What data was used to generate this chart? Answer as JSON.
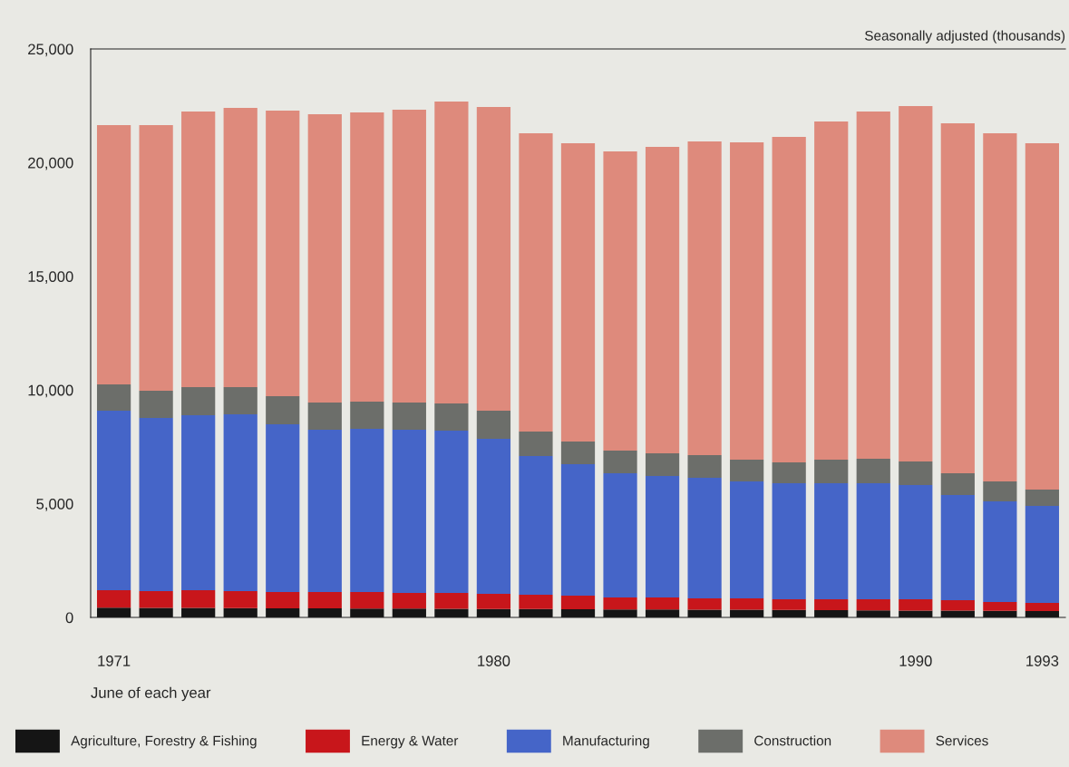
{
  "chart_data": {
    "type": "bar",
    "stacked": true,
    "xlabel": "June of each year",
    "annotations": [
      "Seasonally adjusted (thousands)"
    ],
    "categories": [
      "1971",
      null,
      null,
      null,
      null,
      null,
      null,
      null,
      null,
      "1980",
      null,
      null,
      null,
      null,
      null,
      null,
      null,
      null,
      null,
      "1990",
      null,
      null,
      "1993"
    ],
    "series": [
      {
        "name": "Agriculture, Forestry & Fishing",
        "color": "#151515",
        "values": [
          430,
          420,
          420,
          410,
          400,
          400,
          390,
          390,
          380,
          370,
          370,
          360,
          350,
          350,
          340,
          340,
          330,
          320,
          310,
          300,
          300,
          290,
          280
        ]
      },
      {
        "name": "Energy & Water",
        "color": "#c8161b",
        "values": [
          770,
          740,
          780,
          750,
          720,
          720,
          730,
          690,
          700,
          670,
          630,
          600,
          530,
          530,
          500,
          500,
          470,
          480,
          490,
          500,
          460,
          390,
          360
        ]
      },
      {
        "name": "Manufacturing",
        "color": "#4565c8",
        "values": [
          7890,
          7610,
          7690,
          7770,
          7370,
          7130,
          7170,
          7170,
          7130,
          6810,
          6100,
          5780,
          5460,
          5340,
          5300,
          5140,
          5100,
          5100,
          5100,
          5020,
          4620,
          4420,
          4260
        ]
      },
      {
        "name": "Construction",
        "color": "#6c6e6a",
        "values": [
          1160,
          1200,
          1240,
          1200,
          1240,
          1200,
          1200,
          1200,
          1200,
          1240,
          1070,
          1000,
          1000,
          1000,
          1000,
          960,
          920,
          1040,
          1080,
          1040,
          960,
          880,
          720
        ]
      },
      {
        "name": "Services",
        "color": "#de8a7c",
        "values": [
          11400,
          11680,
          12120,
          12280,
          12560,
          12680,
          12720,
          12880,
          13280,
          13360,
          13120,
          13110,
          13150,
          13470,
          13790,
          13950,
          14310,
          14870,
          15270,
          15630,
          15390,
          15310,
          15230
        ]
      }
    ],
    "ylim": [
      0,
      25000
    ],
    "yticks": [
      {
        "value": 0,
        "label": "0"
      },
      {
        "value": 5000,
        "label": "5,000"
      },
      {
        "value": 10000,
        "label": "10,000"
      },
      {
        "value": 15000,
        "label": "15,000"
      },
      {
        "value": 20000,
        "label": "20,000"
      },
      {
        "value": 25000,
        "label": "25,000"
      }
    ],
    "grid": false,
    "legend": "bottom"
  }
}
